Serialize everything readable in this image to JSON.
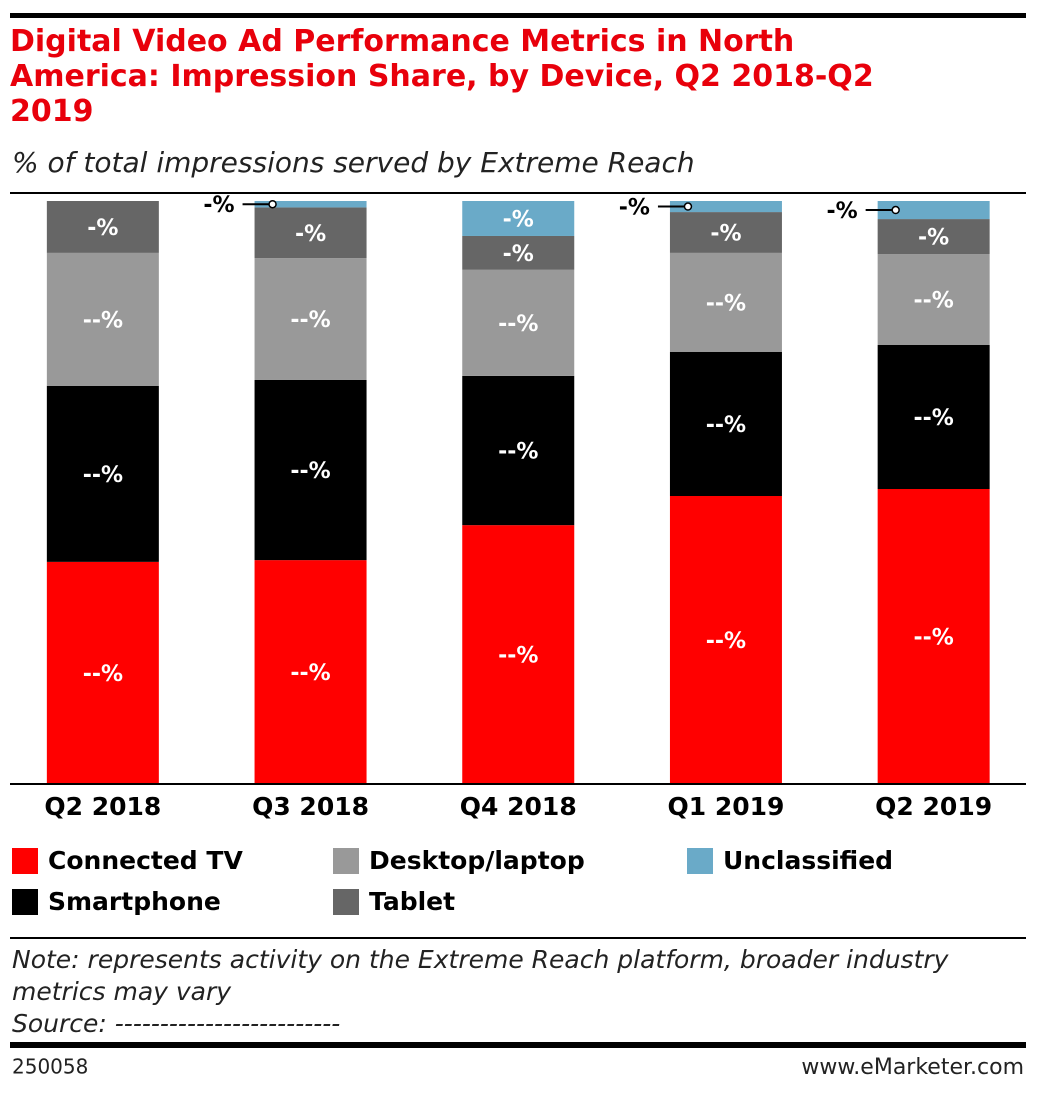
{
  "chart_data": {
    "type": "stacked_bar",
    "title": "Digital Video Ad Performance Metrics in North America: Impression Share, by Device, Q2 2018-Q2 2019",
    "subtitle": "% of total impressions served by Extreme Reach",
    "categories": [
      "Q2 2018",
      "Q3 2018",
      "Q4 2018",
      "Q1 2019",
      "Q2 2019"
    ],
    "ylim": [
      0,
      100
    ],
    "series": [
      {
        "name": "Connected TV",
        "color": "#ff0000",
        "values": [
          38.1,
          38.4,
          44.4,
          49.4,
          50.6
        ],
        "value_labels": [
          "--%",
          "--%",
          "--%",
          "--%",
          "--%"
        ]
      },
      {
        "name": "Smartphone",
        "color": "#000000",
        "values": [
          30.2,
          30.9,
          25.6,
          24.7,
          24.7
        ],
        "value_labels": [
          "--%",
          "--%",
          "--%",
          "--%",
          "--%"
        ]
      },
      {
        "name": "Desktop/laptop",
        "color": "#999999",
        "values": [
          22.8,
          20.9,
          18.2,
          17.0,
          15.6
        ],
        "value_labels": [
          "--%",
          "--%",
          "--%",
          "--%",
          "--%"
        ]
      },
      {
        "name": "Tablet",
        "color": "#666666",
        "values": [
          8.9,
          8.7,
          5.8,
          7.0,
          6.0
        ],
        "value_labels": [
          "-%",
          "-%",
          "-%",
          "-%",
          "-%"
        ]
      },
      {
        "name": "Unclassified",
        "color": "#6aaac8",
        "values": [
          0,
          1.1,
          6.0,
          1.9,
          3.1
        ],
        "value_labels": [
          null,
          "-%",
          "-%",
          "-%",
          "-%"
        ]
      }
    ],
    "note": "Note: represents activity on the Extreme Reach platform, broader industry metrics may vary",
    "source": "Source: -------------------------",
    "chart_id": "250058",
    "site": "www.eMarketer.com"
  }
}
